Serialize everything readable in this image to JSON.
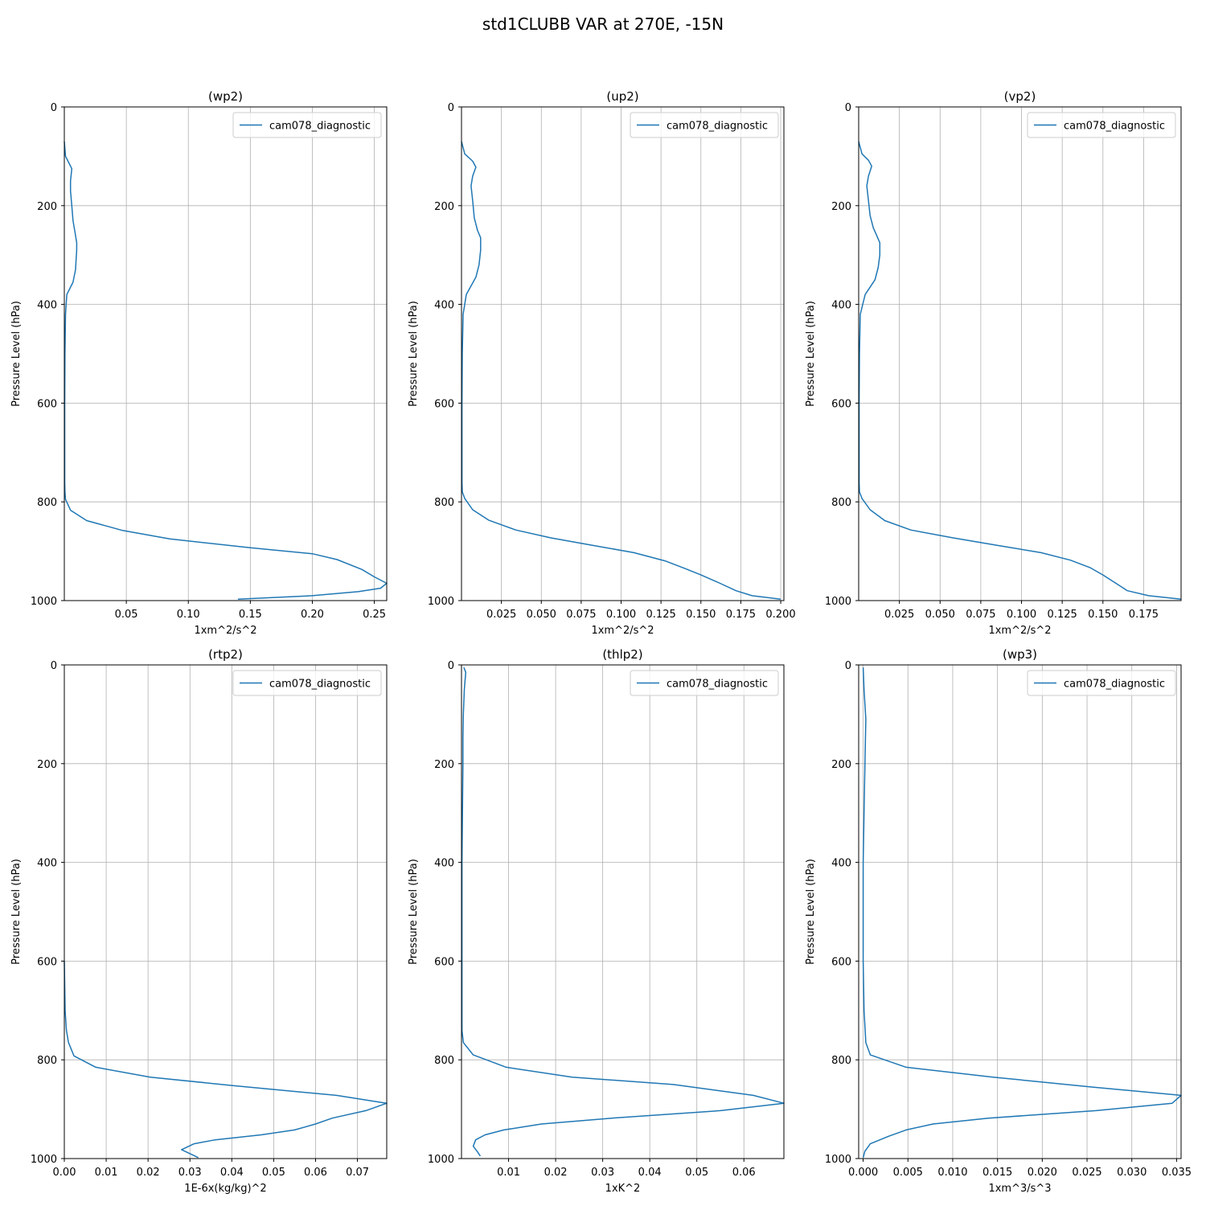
{
  "figure_title": "std1CLUBB VAR at 270E, -15N",
  "chart_data": [
    {
      "type": "line",
      "title": "(wp2)",
      "xlabel": "1xm^2/s^2",
      "ylabel": "Pressure Level (hPa)",
      "xlim": [
        0,
        0.26
      ],
      "ylim": [
        1000,
        0
      ],
      "xticks": [
        0.05,
        0.1,
        0.15,
        0.2,
        0.25
      ],
      "xtick_labels": [
        "0.05",
        "0.10",
        "0.15",
        "0.20",
        "0.25"
      ],
      "yticks": [
        0,
        200,
        400,
        600,
        800,
        1000
      ],
      "ytick_labels": [
        "0",
        "200",
        "400",
        "600",
        "800",
        "1000"
      ],
      "grid": true,
      "legend_position": "upper right",
      "series": [
        {
          "name": "cam078_diagnostic",
          "color": "#1f77b4",
          "x": [
            0.0,
            0.001,
            0.004,
            0.006,
            0.005,
            0.005,
            0.006,
            0.007,
            0.009,
            0.01,
            0.01,
            0.009,
            0.007,
            0.002,
            0.001,
            0.0005,
            0.0003,
            0.0003,
            0.0003,
            0.0005,
            0.001,
            0.005,
            0.018,
            0.047,
            0.085,
            0.15,
            0.2,
            0.22,
            0.24,
            0.25,
            0.26,
            0.255,
            0.237,
            0.2,
            0.14
          ],
          "y": [
            70,
            100,
            115,
            125,
            150,
            170,
            200,
            230,
            260,
            275,
            290,
            330,
            355,
            380,
            420,
            500,
            600,
            700,
            760,
            780,
            795,
            817,
            838,
            858,
            875,
            893,
            905,
            917,
            937,
            952,
            965,
            975,
            982,
            990,
            997
          ]
        }
      ]
    },
    {
      "type": "line",
      "title": "(up2)",
      "xlabel": "1xm^2/s^2",
      "ylabel": "Pressure Level (hPa)",
      "xlim": [
        0,
        0.202
      ],
      "ylim": [
        1000,
        0
      ],
      "xticks": [
        0.025,
        0.05,
        0.075,
        0.1,
        0.125,
        0.15,
        0.175,
        0.2
      ],
      "xtick_labels": [
        "0.025",
        "0.050",
        "0.075",
        "0.100",
        "0.125",
        "0.150",
        "0.175",
        "0.200"
      ],
      "yticks": [
        0,
        200,
        400,
        600,
        800,
        1000
      ],
      "ytick_labels": [
        "0",
        "200",
        "400",
        "600",
        "800",
        "1000"
      ],
      "grid": true,
      "legend_position": "upper right",
      "series": [
        {
          "name": "cam078_diagnostic",
          "color": "#1f77b4",
          "x": [
            0.0,
            0.002,
            0.007,
            0.009,
            0.007,
            0.006,
            0.007,
            0.008,
            0.01,
            0.012,
            0.012,
            0.011,
            0.009,
            0.003,
            0.001,
            0.0005,
            0.0003,
            0.0003,
            0.0003,
            0.0005,
            0.002,
            0.007,
            0.017,
            0.034,
            0.056,
            0.082,
            0.108,
            0.128,
            0.14,
            0.15,
            0.162,
            0.172,
            0.182,
            0.2
          ],
          "y": [
            70,
            95,
            110,
            122,
            140,
            160,
            190,
            225,
            250,
            265,
            290,
            320,
            345,
            380,
            420,
            500,
            600,
            700,
            760,
            780,
            793,
            816,
            837,
            857,
            873,
            888,
            903,
            920,
            935,
            948,
            965,
            980,
            990,
            997
          ]
        }
      ]
    },
    {
      "type": "line",
      "title": "(vp2)",
      "xlabel": "1xm^2/s^2",
      "ylabel": "Pressure Level (hPa)",
      "xlim": [
        0,
        0.198
      ],
      "ylim": [
        1000,
        0
      ],
      "xticks": [
        0.025,
        0.05,
        0.075,
        0.1,
        0.125,
        0.15,
        0.175
      ],
      "xtick_labels": [
        "0.025",
        "0.050",
        "0.075",
        "0.100",
        "0.125",
        "0.150",
        "0.175"
      ],
      "yticks": [
        0,
        200,
        400,
        600,
        800,
        1000
      ],
      "ytick_labels": [
        "0",
        "200",
        "400",
        "600",
        "800",
        "1000"
      ],
      "grid": true,
      "legend_position": "upper right",
      "series": [
        {
          "name": "cam078_diagnostic",
          "color": "#1f77b4",
          "x": [
            0.0,
            0.002,
            0.006,
            0.008,
            0.006,
            0.005,
            0.006,
            0.007,
            0.009,
            0.011,
            0.013,
            0.013,
            0.012,
            0.01,
            0.004,
            0.001,
            0.0005,
            0.0003,
            0.0003,
            0.0003,
            0.0005,
            0.002,
            0.007,
            0.016,
            0.032,
            0.058,
            0.085,
            0.112,
            0.13,
            0.142,
            0.15,
            0.158,
            0.165,
            0.178,
            0.198
          ],
          "y": [
            70,
            95,
            108,
            120,
            140,
            160,
            190,
            220,
            245,
            260,
            275,
            300,
            325,
            350,
            380,
            420,
            500,
            600,
            700,
            760,
            780,
            793,
            816,
            838,
            857,
            873,
            888,
            903,
            918,
            933,
            948,
            965,
            980,
            990,
            997
          ]
        }
      ]
    },
    {
      "type": "line",
      "title": "(rtp2)",
      "xlabel": "1E-6x(kg/kg)^2",
      "ylabel": "Pressure Level (hPa)",
      "xlim": [
        0,
        0.077
      ],
      "ylim": [
        1000,
        0
      ],
      "xticks": [
        0.0,
        0.01,
        0.02,
        0.03,
        0.04,
        0.05,
        0.06,
        0.07
      ],
      "xtick_labels": [
        "0.00",
        "0.01",
        "0.02",
        "0.03",
        "0.04",
        "0.05",
        "0.06",
        "0.07"
      ],
      "yticks": [
        0,
        200,
        400,
        600,
        800,
        1000
      ],
      "ytick_labels": [
        "0",
        "200",
        "400",
        "600",
        "800",
        "1000"
      ],
      "grid": true,
      "legend_position": "upper right",
      "series": [
        {
          "name": "cam078_diagnostic",
          "color": "#1f77b4",
          "x": [
            0.0,
            0.0002,
            0.0005,
            0.001,
            0.0023,
            0.0075,
            0.0205,
            0.04,
            0.065,
            0.077,
            0.072,
            0.064,
            0.06,
            0.055,
            0.047,
            0.036,
            0.031,
            0.028,
            0.032
          ],
          "y": [
            600,
            700,
            740,
            765,
            792,
            815,
            835,
            852,
            872,
            888,
            903,
            918,
            930,
            942,
            952,
            962,
            970,
            982,
            998
          ]
        }
      ]
    },
    {
      "type": "line",
      "title": "(thlp2)",
      "xlabel": "1xK^2",
      "ylabel": "Pressure Level (hPa)",
      "xlim": [
        0,
        0.0685
      ],
      "ylim": [
        1000,
        0
      ],
      "xticks": [
        0.01,
        0.02,
        0.03,
        0.04,
        0.05,
        0.06
      ],
      "xtick_labels": [
        "0.01",
        "0.02",
        "0.03",
        "0.04",
        "0.05",
        "0.06"
      ],
      "yticks": [
        0,
        200,
        400,
        600,
        800,
        1000
      ],
      "ytick_labels": [
        "0",
        "200",
        "400",
        "600",
        "800",
        "1000"
      ],
      "grid": true,
      "legend_position": "upper right",
      "series": [
        {
          "name": "cam078_diagnostic",
          "color": "#1f77b4",
          "x": [
            0.0005,
            0.0009,
            0.0006,
            0.0004,
            0.0003,
            0.0003,
            0.0002,
            0.0001,
            0.0001,
            0.0001,
            0.0001,
            0.0004,
            0.0025,
            0.0095,
            0.0235,
            0.045,
            0.062,
            0.0685,
            0.055,
            0.032,
            0.017,
            0.009,
            0.005,
            0.003,
            0.0025,
            0.0033,
            0.004
          ],
          "y": [
            5,
            15,
            50,
            100,
            150,
            200,
            300,
            400,
            600,
            700,
            740,
            765,
            790,
            815,
            835,
            850,
            872,
            888,
            903,
            918,
            930,
            942,
            952,
            962,
            975,
            985,
            995
          ]
        }
      ]
    },
    {
      "type": "line",
      "title": "(wp3)",
      "xlabel": "1xm^3/s^3",
      "ylabel": "Pressure Level (hPa)",
      "xlim": [
        -0.0005,
        0.0355
      ],
      "ylim": [
        1000,
        0
      ],
      "xticks": [
        0.0,
        0.005,
        0.01,
        0.015,
        0.02,
        0.025,
        0.03,
        0.035
      ],
      "xtick_labels": [
        "0.000",
        "0.005",
        "0.010",
        "0.015",
        "0.020",
        "0.025",
        "0.030",
        "0.035"
      ],
      "yticks": [
        0,
        200,
        400,
        600,
        800,
        1000
      ],
      "ytick_labels": [
        "0",
        "200",
        "400",
        "600",
        "800",
        "1000"
      ],
      "grid": true,
      "legend_position": "upper right",
      "series": [
        {
          "name": "cam078_diagnostic",
          "color": "#1f77b4",
          "x": [
            0.0,
            0.0001,
            0.0003,
            0.0002,
            0.0001,
            0.0,
            0.0,
            0.0001,
            0.0003,
            0.0008,
            0.0048,
            0.0145,
            0.0255,
            0.0355,
            0.0345,
            0.026,
            0.014,
            0.0078,
            0.0048,
            0.0028,
            0.0008,
            0.0002,
            0.0
          ],
          "y": [
            5,
            50,
            110,
            200,
            300,
            400,
            600,
            700,
            765,
            790,
            815,
            835,
            855,
            872,
            888,
            903,
            918,
            930,
            942,
            955,
            970,
            985,
            998
          ]
        }
      ]
    }
  ]
}
